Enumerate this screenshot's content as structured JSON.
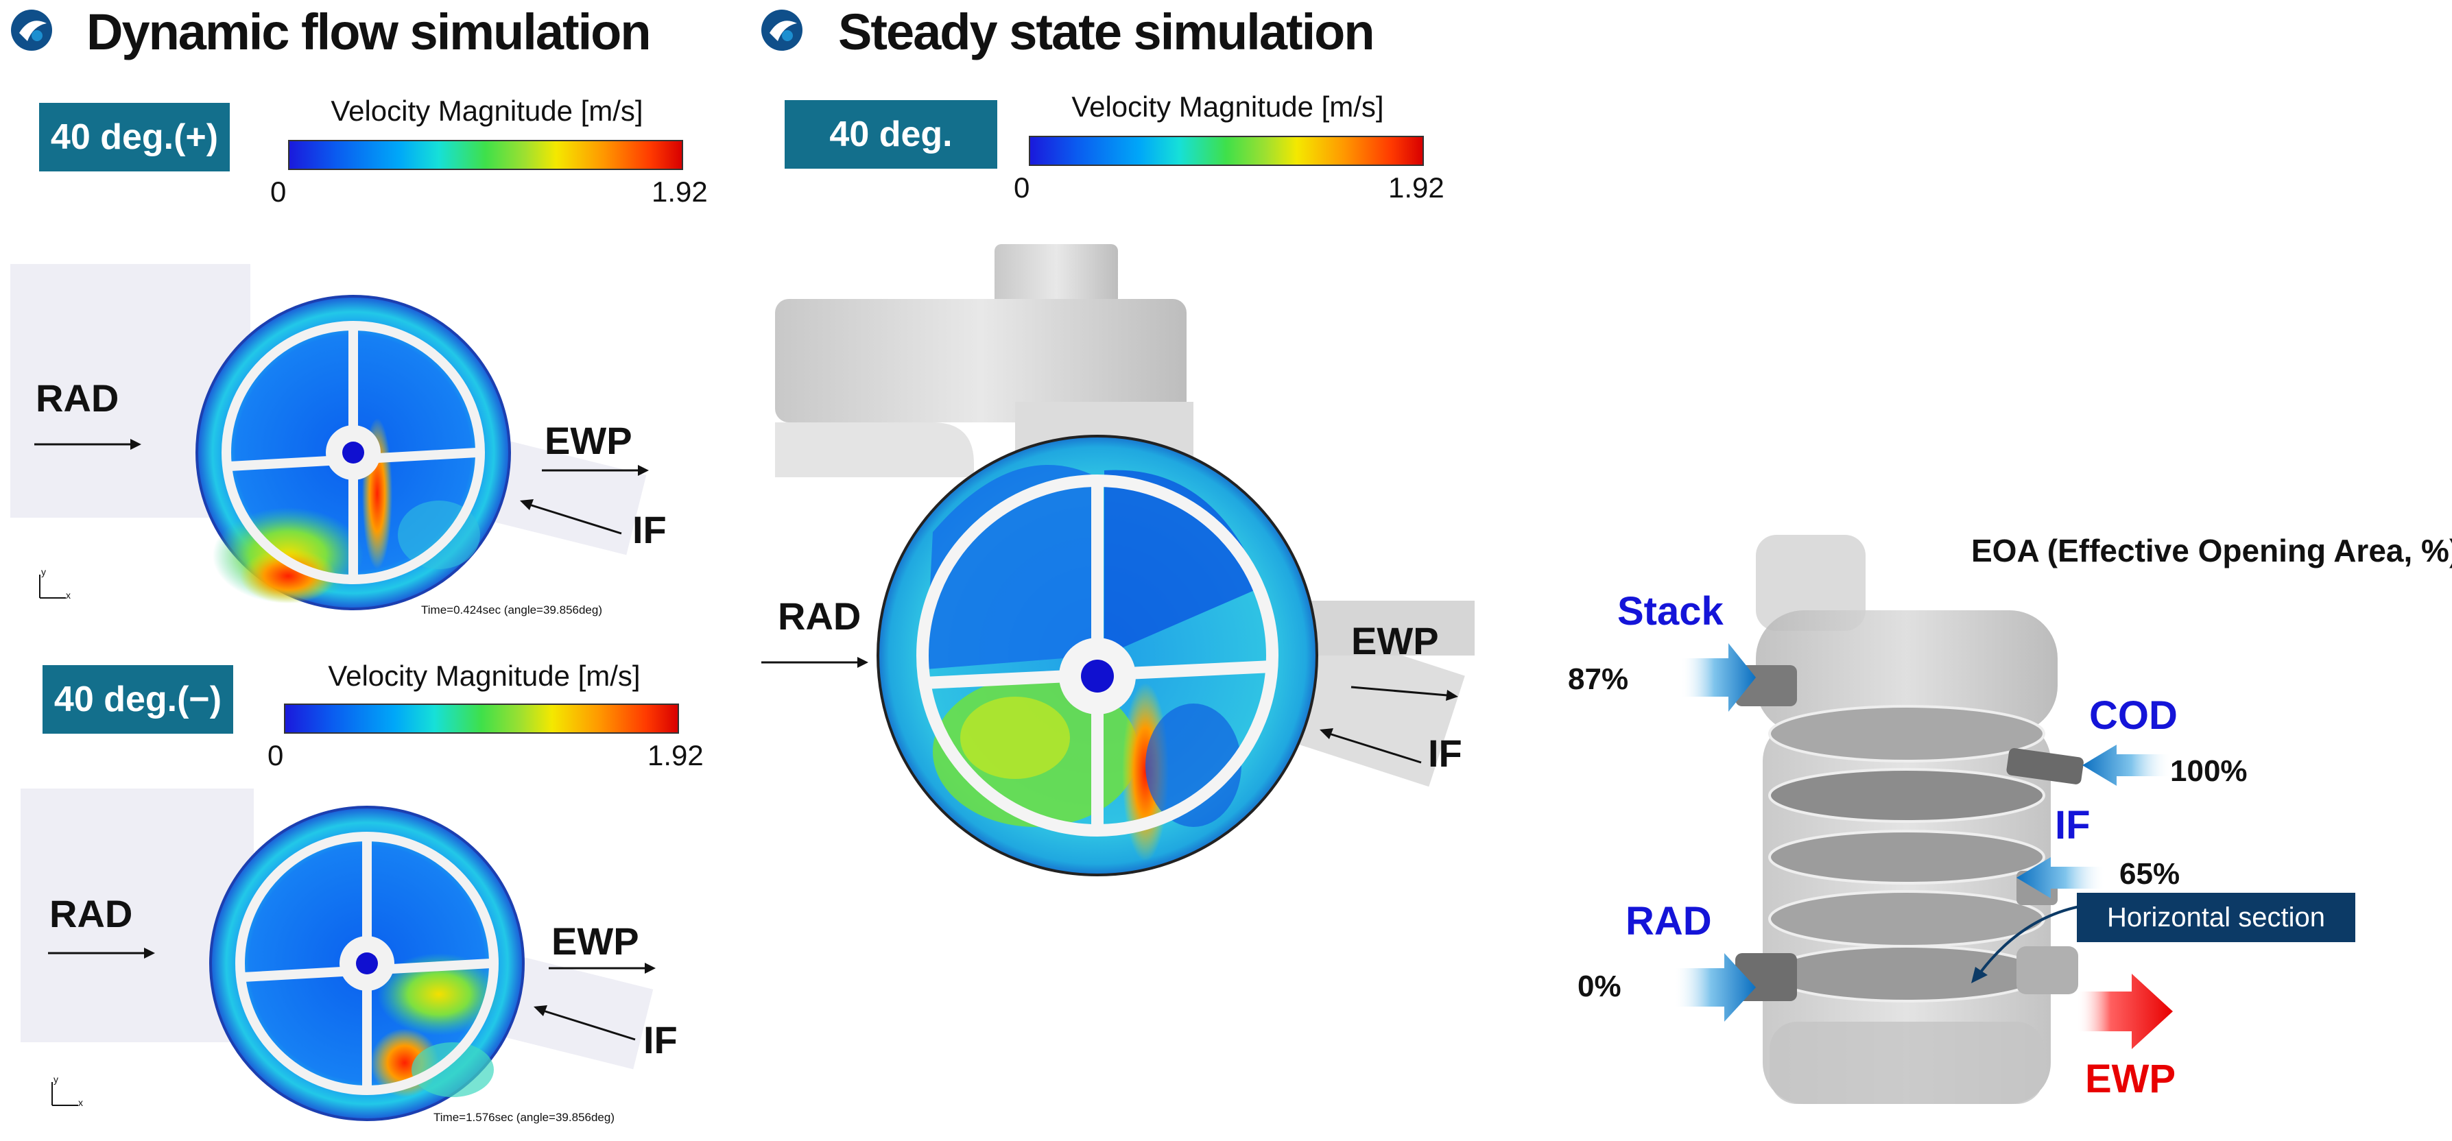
{
  "sections": {
    "dynamic_title": "Dynamic flow simulation",
    "steady_title": "Steady state simulation"
  },
  "colorbar": {
    "title": "Velocity Magnitude [m/s]",
    "min": "0",
    "max": "1.92"
  },
  "cases": {
    "dyn_pos": {
      "label": "40 deg.(+)",
      "time": "Time=0.424sec (angle=39.856deg)"
    },
    "dyn_neg": {
      "label": "40 deg.(−)",
      "time": "Time=1.576sec (angle=39.856deg)"
    },
    "steady": {
      "label": "40 deg."
    }
  },
  "flow_labels": {
    "rad": "RAD",
    "ewp": "EWP",
    "if": "IF"
  },
  "axis_labels": {
    "y": "y",
    "x": "x"
  },
  "valve": {
    "eoa_title": "EOA (Effective Opening Area, %)",
    "ports": {
      "stack": {
        "name": "Stack",
        "pct": "87%"
      },
      "cod": {
        "name": "COD",
        "pct": "100%"
      },
      "if": {
        "name": "IF",
        "pct": "65%"
      },
      "rad": {
        "name": "RAD",
        "pct": "0%"
      },
      "ewp": {
        "name": "EWP"
      }
    },
    "horizontal_section": "Horizontal section"
  },
  "colors": {
    "label_bg": "#136f8c",
    "port_blue": "#1414d8",
    "ewp_red": "#e80000",
    "section_bg": "#0c3a66"
  }
}
